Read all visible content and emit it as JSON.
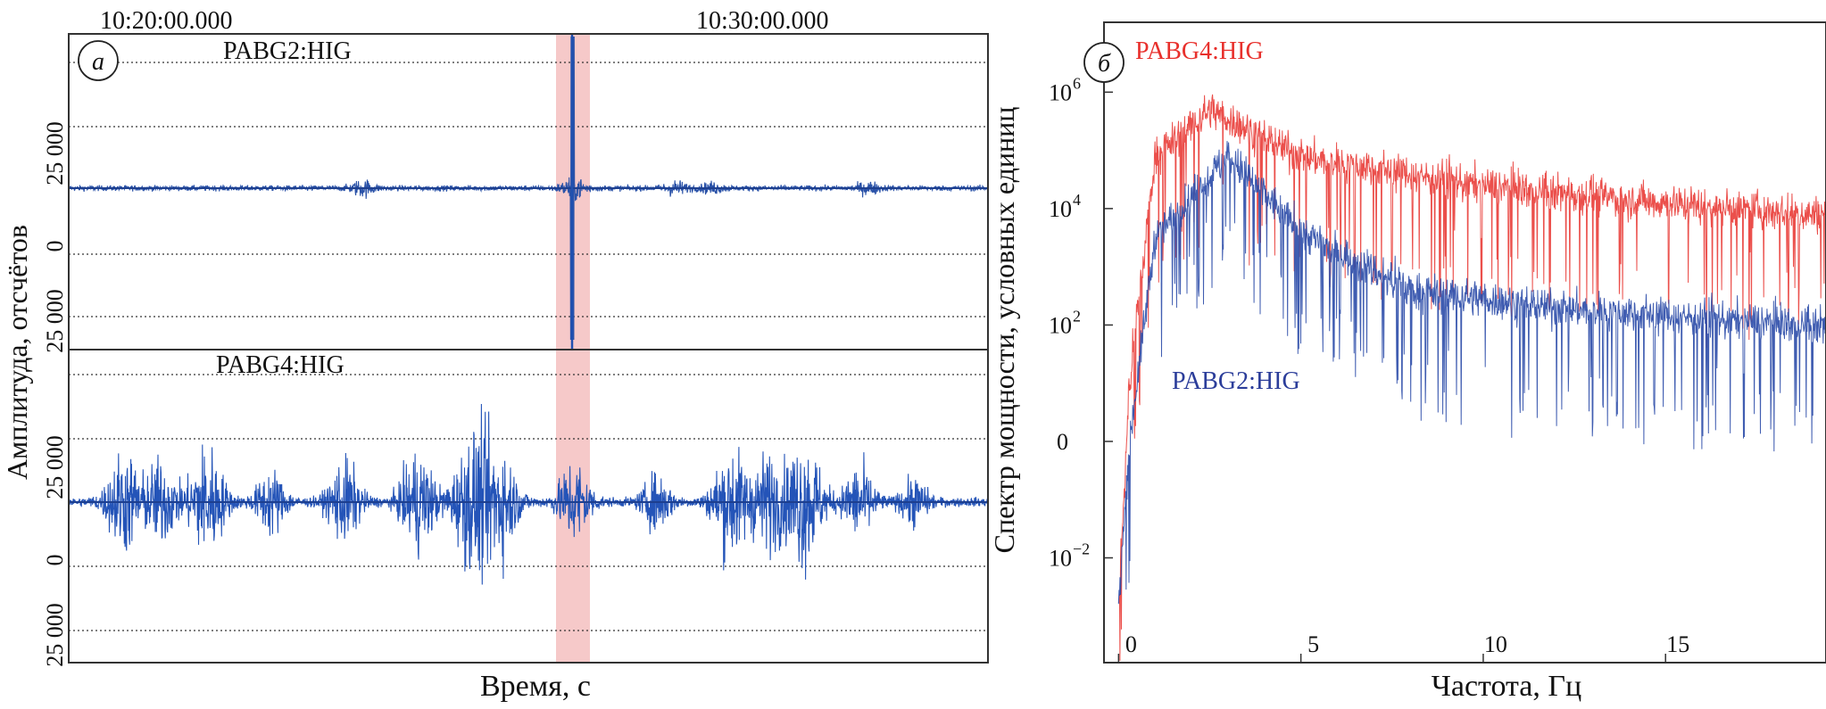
{
  "chart_data": [
    {
      "panel": "а",
      "type": "line",
      "xlabel": "Время, с",
      "ylabel": "Амплитуда, отсчётов",
      "time_ticks": [
        "10:20:00.000",
        "10:30:00.000"
      ],
      "highlight_band_color": "#f6c9c9",
      "series": [
        {
          "name": "PABG2:HIG",
          "color": "#2a52a8",
          "y_tick_labels": [
            "25 000",
            "0",
            "25 000"
          ],
          "bursts": [
            {
              "t": 0.32,
              "amp": 0.08
            },
            {
              "t": 0.55,
              "amp": 0.12
            },
            {
              "t": 0.66,
              "amp": 0.07
            },
            {
              "t": 0.7,
              "amp": 0.05
            },
            {
              "t": 0.87,
              "amp": 0.06
            }
          ],
          "spike": {
            "t": 0.548,
            "amp": 1.0
          }
        },
        {
          "name": "PABG4:HIG",
          "color": "#2454b8",
          "y_tick_labels": [
            "25 000",
            "0",
            "25 000"
          ],
          "bursts": [
            {
              "t": 0.06,
              "amp": 0.55
            },
            {
              "t": 0.1,
              "amp": 0.45
            },
            {
              "t": 0.15,
              "amp": 0.62
            },
            {
              "t": 0.22,
              "amp": 0.35
            },
            {
              "t": 0.3,
              "amp": 0.45
            },
            {
              "t": 0.38,
              "amp": 0.55
            },
            {
              "t": 0.44,
              "amp": 0.75
            },
            {
              "t": 0.47,
              "amp": 0.55
            },
            {
              "t": 0.55,
              "amp": 0.45
            },
            {
              "t": 0.64,
              "amp": 0.3
            },
            {
              "t": 0.72,
              "amp": 0.6
            },
            {
              "t": 0.76,
              "amp": 0.5
            },
            {
              "t": 0.8,
              "amp": 0.7
            },
            {
              "t": 0.86,
              "amp": 0.4
            },
            {
              "t": 0.92,
              "amp": 0.25
            }
          ]
        }
      ]
    },
    {
      "panel": "б",
      "type": "line",
      "xlabel": "Частота, Гц",
      "ylabel": "Спектр мощности, условных единиц",
      "x_ticks": [
        "0",
        "5",
        "10",
        "15"
      ],
      "x_tick_values": [
        0,
        5,
        10,
        15
      ],
      "x_range": [
        -0.4,
        19.4
      ],
      "y_ticks": [
        {
          "base": "10",
          "exp": "6",
          "value": 6
        },
        {
          "base": "10",
          "exp": "4",
          "value": 4
        },
        {
          "base": "10",
          "exp": "2",
          "value": 2
        },
        {
          "base": "0",
          "exp": "",
          "value": 0
        },
        {
          "base": "10",
          "exp": "−2",
          "value": -2
        }
      ],
      "y_log_range": [
        -3.8,
        7.2
      ],
      "series": [
        {
          "name": "PABG4:HIG",
          "color": "#e8302c",
          "envelope": [
            [
              0,
              -2.8
            ],
            [
              0.3,
              1.0
            ],
            [
              1.0,
              4.9
            ],
            [
              2.5,
              5.7
            ],
            [
              5.0,
              4.9
            ],
            [
              10.0,
              4.4
            ],
            [
              15.0,
              4.1
            ],
            [
              19.0,
              3.9
            ]
          ]
        },
        {
          "name": "PABG2:HIG",
          "color": "#2b4ba8",
          "envelope": [
            [
              0,
              -2.8
            ],
            [
              0.3,
              0.0
            ],
            [
              1.0,
              3.5
            ],
            [
              3.0,
              4.9
            ],
            [
              5.0,
              3.6
            ],
            [
              8.0,
              2.6
            ],
            [
              12.0,
              2.3
            ],
            [
              19.0,
              2.0
            ]
          ]
        }
      ]
    }
  ]
}
